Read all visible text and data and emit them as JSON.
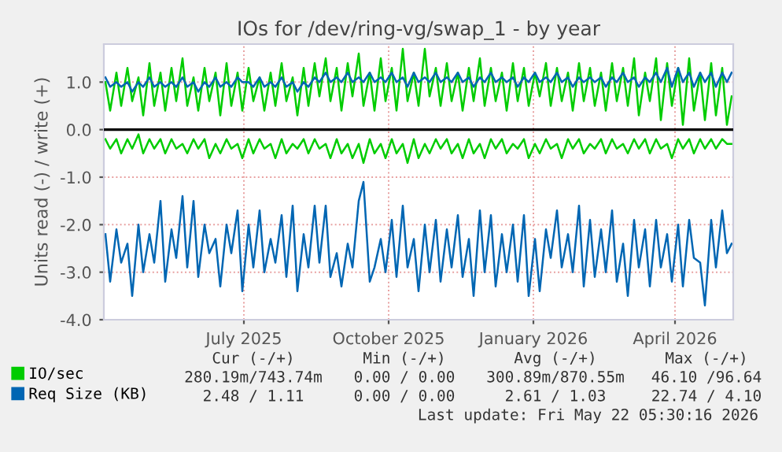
{
  "chart_data": {
    "type": "line",
    "title": "IOs for /dev/ring-vg/swap_1 - by year",
    "ylabel": "Units read (-) / write (+)",
    "x": [
      "2025-04-19",
      "2025-04-22",
      "2025-04-26",
      "2025-04-29",
      "2025-05-03",
      "2025-05-06",
      "2025-05-10",
      "2025-05-13",
      "2025-05-17",
      "2025-05-20",
      "2025-05-24",
      "2025-05-27",
      "2025-05-31",
      "2025-06-03",
      "2025-06-07",
      "2025-06-10",
      "2025-06-14",
      "2025-06-17",
      "2025-06-21",
      "2025-06-24",
      "2025-06-28",
      "2025-07-01",
      "2025-07-05",
      "2025-07-08",
      "2025-07-12",
      "2025-07-15",
      "2025-07-19",
      "2025-07-22",
      "2025-07-26",
      "2025-07-29",
      "2025-08-02",
      "2025-08-05",
      "2025-08-09",
      "2025-08-12",
      "2025-08-16",
      "2025-08-19",
      "2025-08-23",
      "2025-08-26",
      "2025-08-30",
      "2025-09-02",
      "2025-09-06",
      "2025-09-09",
      "2025-09-13",
      "2025-09-16",
      "2025-09-20",
      "2025-09-23",
      "2025-09-27",
      "2025-09-30",
      "2025-10-04",
      "2025-10-07",
      "2025-10-11",
      "2025-10-14",
      "2025-10-18",
      "2025-10-21",
      "2025-10-25",
      "2025-10-28",
      "2025-11-01",
      "2025-11-04",
      "2025-11-08",
      "2025-11-11",
      "2025-11-15",
      "2025-11-18",
      "2025-11-22",
      "2025-11-25",
      "2025-11-29",
      "2025-12-02",
      "2025-12-06",
      "2025-12-09",
      "2025-12-13",
      "2025-12-16",
      "2025-12-20",
      "2025-12-23",
      "2025-12-27",
      "2025-12-30",
      "2026-01-03",
      "2026-01-06",
      "2026-01-10",
      "2026-01-13",
      "2026-01-17",
      "2026-01-20",
      "2026-01-24",
      "2026-01-27",
      "2026-01-31",
      "2026-02-03",
      "2026-02-07",
      "2026-02-10",
      "2026-02-14",
      "2026-02-17",
      "2026-02-21",
      "2026-02-24",
      "2026-02-28",
      "2026-03-03",
      "2026-03-07",
      "2026-03-10",
      "2026-03-14",
      "2026-03-17",
      "2026-03-21",
      "2026-03-24",
      "2026-03-28",
      "2026-03-31",
      "2026-04-04",
      "2026-04-07",
      "2026-04-11",
      "2026-04-14",
      "2026-04-18",
      "2026-04-21",
      "2026-04-25",
      "2026-04-28",
      "2026-05-02",
      "2026-05-05",
      "2026-05-09",
      "2026-05-12",
      "2026-05-16",
      "2026-05-19",
      "2026-05-22"
    ],
    "series": [
      {
        "name": "IO/sec",
        "color": "#00cc00",
        "values": [
          1.0,
          0.4,
          1.2,
          0.5,
          1.3,
          0.6,
          1.1,
          0.3,
          1.4,
          0.5,
          1.2,
          0.4,
          1.3,
          0.6,
          1.5,
          0.5,
          1.1,
          0.4,
          1.3,
          0.6,
          1.2,
          0.3,
          1.4,
          0.5,
          1.2,
          0.4,
          1.3,
          0.6,
          1.1,
          0.4,
          1.2,
          0.5,
          1.4,
          0.6,
          1.1,
          0.3,
          1.3,
          0.5,
          1.4,
          0.7,
          1.5,
          0.6,
          1.3,
          0.4,
          1.4,
          0.7,
          1.6,
          0.5,
          1.2,
          0.4,
          1.5,
          0.6,
          1.3,
          0.4,
          1.7,
          0.6,
          1.2,
          0.5,
          1.7,
          0.7,
          1.3,
          0.5,
          1.4,
          0.6,
          1.2,
          0.4,
          1.3,
          0.6,
          1.5,
          0.5,
          1.3,
          0.6,
          1.2,
          0.4,
          1.4,
          0.6,
          1.3,
          0.5,
          1.2,
          0.7,
          1.4,
          0.5,
          1.3,
          0.6,
          1.2,
          0.4,
          1.4,
          0.6,
          1.3,
          0.5,
          1.2,
          0.4,
          1.4,
          0.6,
          1.3,
          0.5,
          1.5,
          0.3,
          1.2,
          0.6,
          1.5,
          0.2,
          1.4,
          0.5,
          1.3,
          0.1,
          1.5,
          0.4,
          1.2,
          0.2,
          1.4,
          0.3,
          1.3,
          0.1,
          0.7
        ]
      },
      {
        "color": "#00cc00",
        "values": [
          -0.2,
          -0.4,
          -0.2,
          -0.5,
          -0.2,
          -0.4,
          -0.1,
          -0.5,
          -0.2,
          -0.4,
          -0.2,
          -0.5,
          -0.2,
          -0.4,
          -0.3,
          -0.5,
          -0.2,
          -0.4,
          -0.2,
          -0.6,
          -0.3,
          -0.5,
          -0.2,
          -0.4,
          -0.3,
          -0.6,
          -0.2,
          -0.5,
          -0.2,
          -0.4,
          -0.3,
          -0.6,
          -0.2,
          -0.5,
          -0.3,
          -0.4,
          -0.2,
          -0.5,
          -0.2,
          -0.4,
          -0.3,
          -0.6,
          -0.2,
          -0.5,
          -0.3,
          -0.6,
          -0.3,
          -0.7,
          -0.2,
          -0.5,
          -0.3,
          -0.6,
          -0.2,
          -0.5,
          -0.3,
          -0.7,
          -0.2,
          -0.6,
          -0.3,
          -0.5,
          -0.2,
          -0.4,
          -0.2,
          -0.5,
          -0.3,
          -0.6,
          -0.2,
          -0.5,
          -0.3,
          -0.6,
          -0.2,
          -0.4,
          -0.2,
          -0.5,
          -0.3,
          -0.4,
          -0.2,
          -0.6,
          -0.3,
          -0.5,
          -0.2,
          -0.4,
          -0.3,
          -0.6,
          -0.2,
          -0.4,
          -0.2,
          -0.5,
          -0.3,
          -0.4,
          -0.2,
          -0.5,
          -0.2,
          -0.4,
          -0.3,
          -0.5,
          -0.2,
          -0.4,
          -0.2,
          -0.5,
          -0.2,
          -0.4,
          -0.3,
          -0.6,
          -0.2,
          -0.4,
          -0.2,
          -0.5,
          -0.2,
          -0.4,
          -0.2,
          -0.4,
          -0.2,
          -0.3,
          -0.3
        ]
      },
      {
        "name": "Req Size (KB)",
        "color": "#0066b3",
        "values": [
          1.1,
          0.9,
          1.0,
          0.9,
          1.0,
          0.8,
          1.0,
          0.9,
          1.1,
          0.9,
          1.0,
          0.9,
          1.0,
          0.9,
          1.1,
          0.9,
          1.0,
          0.8,
          1.0,
          0.9,
          1.1,
          0.9,
          1.0,
          0.9,
          1.1,
          1.0,
          1.0,
          0.9,
          1.1,
          0.9,
          1.0,
          0.9,
          1.1,
          0.9,
          1.0,
          0.8,
          1.0,
          0.9,
          1.1,
          1.0,
          1.2,
          1.0,
          1.1,
          1.0,
          1.2,
          1.0,
          1.1,
          1.0,
          1.2,
          1.0,
          1.1,
          1.0,
          1.2,
          1.0,
          1.1,
          0.9,
          1.2,
          1.0,
          1.1,
          1.0,
          1.2,
          1.0,
          1.1,
          1.0,
          1.2,
          1.0,
          1.1,
          0.9,
          1.1,
          1.0,
          1.2,
          1.0,
          1.1,
          1.0,
          1.1,
          0.9,
          1.1,
          1.0,
          1.2,
          1.0,
          1.1,
          1.0,
          1.2,
          1.0,
          1.1,
          0.9,
          1.1,
          1.0,
          1.1,
          1.0,
          1.1,
          0.9,
          1.1,
          1.0,
          1.2,
          1.0,
          1.1,
          0.9,
          1.1,
          1.0,
          1.2,
          1.0,
          1.3,
          0.9,
          1.3,
          1.0,
          1.2,
          0.9,
          1.2,
          1.0,
          1.2,
          0.9,
          1.2,
          1.0,
          1.2
        ]
      },
      {
        "color": "#0066b3",
        "values": [
          -2.2,
          -3.2,
          -2.1,
          -2.8,
          -2.4,
          -3.5,
          -2.0,
          -3.0,
          -2.2,
          -2.8,
          -1.5,
          -3.2,
          -2.1,
          -2.7,
          -1.4,
          -2.9,
          -1.5,
          -3.1,
          -2.0,
          -2.6,
          -2.3,
          -3.3,
          -2.0,
          -2.6,
          -1.7,
          -3.4,
          -2.0,
          -2.9,
          -1.7,
          -3.0,
          -2.3,
          -2.8,
          -1.8,
          -3.1,
          -1.6,
          -3.4,
          -2.2,
          -2.9,
          -1.6,
          -2.8,
          -1.6,
          -3.1,
          -2.6,
          -3.3,
          -2.4,
          -2.9,
          -1.5,
          -1.1,
          -3.2,
          -2.9,
          -2.3,
          -3.0,
          -1.9,
          -3.1,
          -1.6,
          -2.9,
          -2.3,
          -3.4,
          -2.0,
          -3.0,
          -1.9,
          -3.2,
          -2.1,
          -2.9,
          -1.8,
          -3.1,
          -2.3,
          -3.5,
          -1.7,
          -3.0,
          -1.8,
          -3.3,
          -2.2,
          -3.0,
          -2.0,
          -3.2,
          -1.8,
          -3.5,
          -2.3,
          -3.4,
          -2.1,
          -2.7,
          -1.7,
          -2.9,
          -2.2,
          -3.0,
          -1.6,
          -3.3,
          -1.9,
          -3.1,
          -2.1,
          -3.0,
          -1.7,
          -3.2,
          -2.4,
          -3.5,
          -1.9,
          -2.9,
          -2.1,
          -3.3,
          -1.9,
          -2.9,
          -2.2,
          -3.2,
          -2.0,
          -3.3,
          -1.9,
          -2.7,
          -2.8,
          -3.7,
          -1.9,
          -2.9,
          -1.7,
          -2.6,
          -2.4
        ]
      }
    ],
    "xlim": [
      "2025-04-18",
      "2026-05-23"
    ],
    "xticks": [
      {
        "value": "2025-07-16",
        "label": "July 2025"
      },
      {
        "value": "2025-10-16",
        "label": "October 2025"
      },
      {
        "value": "2026-01-16",
        "label": "January 2026"
      },
      {
        "value": "2026-04-16",
        "label": "April 2026"
      }
    ],
    "ylim": [
      -4.0,
      1.8
    ],
    "yticks": [
      {
        "value": -4,
        "label": "-4.0"
      },
      {
        "value": -3,
        "label": "-3.0"
      },
      {
        "value": -2,
        "label": "-2.0"
      },
      {
        "value": -1,
        "label": "-1.0"
      },
      {
        "value": 0,
        "label": "0.0"
      },
      {
        "value": 1,
        "label": "1.0"
      }
    ],
    "ref_lines": [
      {
        "axis": "y",
        "value": 0,
        "color": "#000000"
      }
    ],
    "grid": true,
    "legend": "bottom left",
    "annotations": [
      "Cur (-/+)",
      "Min (-/+)",
      "Avg (-/+)",
      "Max (-/+)",
      "280.19m/743.74m",
      "0.00 / 0.00",
      "300.89m/870.55m",
      "46.10 /96.64",
      "2.48 / 1.11",
      "0.00 / 0.00",
      "2.61 / 1.03",
      "22.74 / 4.10",
      "Last update: Fri May 22 05:30:16 2026"
    ]
  }
}
